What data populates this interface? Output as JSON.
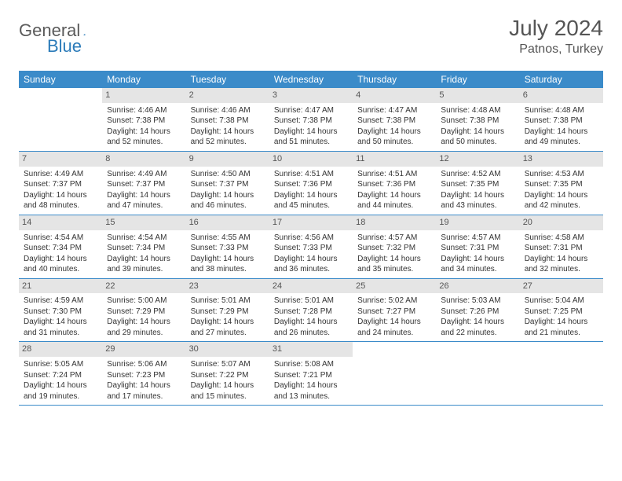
{
  "logo": {
    "part1": "General",
    "part2": "Blue"
  },
  "title": "July 2024",
  "location": "Patnos, Turkey",
  "colors": {
    "header_bg": "#3b8bc9",
    "header_text": "#ffffff",
    "daynum_bg": "#e5e5e5",
    "body_text": "#333333",
    "title_text": "#555555",
    "row_border": "#3b8bc9"
  },
  "dow": [
    "Sunday",
    "Monday",
    "Tuesday",
    "Wednesday",
    "Thursday",
    "Friday",
    "Saturday"
  ],
  "weeks": [
    [
      {
        "n": "",
        "sr": "",
        "ss": "",
        "dl": ""
      },
      {
        "n": "1",
        "sr": "4:46 AM",
        "ss": "7:38 PM",
        "dl": "14 hours and 52 minutes."
      },
      {
        "n": "2",
        "sr": "4:46 AM",
        "ss": "7:38 PM",
        "dl": "14 hours and 52 minutes."
      },
      {
        "n": "3",
        "sr": "4:47 AM",
        "ss": "7:38 PM",
        "dl": "14 hours and 51 minutes."
      },
      {
        "n": "4",
        "sr": "4:47 AM",
        "ss": "7:38 PM",
        "dl": "14 hours and 50 minutes."
      },
      {
        "n": "5",
        "sr": "4:48 AM",
        "ss": "7:38 PM",
        "dl": "14 hours and 50 minutes."
      },
      {
        "n": "6",
        "sr": "4:48 AM",
        "ss": "7:38 PM",
        "dl": "14 hours and 49 minutes."
      }
    ],
    [
      {
        "n": "7",
        "sr": "4:49 AM",
        "ss": "7:37 PM",
        "dl": "14 hours and 48 minutes."
      },
      {
        "n": "8",
        "sr": "4:49 AM",
        "ss": "7:37 PM",
        "dl": "14 hours and 47 minutes."
      },
      {
        "n": "9",
        "sr": "4:50 AM",
        "ss": "7:37 PM",
        "dl": "14 hours and 46 minutes."
      },
      {
        "n": "10",
        "sr": "4:51 AM",
        "ss": "7:36 PM",
        "dl": "14 hours and 45 minutes."
      },
      {
        "n": "11",
        "sr": "4:51 AM",
        "ss": "7:36 PM",
        "dl": "14 hours and 44 minutes."
      },
      {
        "n": "12",
        "sr": "4:52 AM",
        "ss": "7:35 PM",
        "dl": "14 hours and 43 minutes."
      },
      {
        "n": "13",
        "sr": "4:53 AM",
        "ss": "7:35 PM",
        "dl": "14 hours and 42 minutes."
      }
    ],
    [
      {
        "n": "14",
        "sr": "4:54 AM",
        "ss": "7:34 PM",
        "dl": "14 hours and 40 minutes."
      },
      {
        "n": "15",
        "sr": "4:54 AM",
        "ss": "7:34 PM",
        "dl": "14 hours and 39 minutes."
      },
      {
        "n": "16",
        "sr": "4:55 AM",
        "ss": "7:33 PM",
        "dl": "14 hours and 38 minutes."
      },
      {
        "n": "17",
        "sr": "4:56 AM",
        "ss": "7:33 PM",
        "dl": "14 hours and 36 minutes."
      },
      {
        "n": "18",
        "sr": "4:57 AM",
        "ss": "7:32 PM",
        "dl": "14 hours and 35 minutes."
      },
      {
        "n": "19",
        "sr": "4:57 AM",
        "ss": "7:31 PM",
        "dl": "14 hours and 34 minutes."
      },
      {
        "n": "20",
        "sr": "4:58 AM",
        "ss": "7:31 PM",
        "dl": "14 hours and 32 minutes."
      }
    ],
    [
      {
        "n": "21",
        "sr": "4:59 AM",
        "ss": "7:30 PM",
        "dl": "14 hours and 31 minutes."
      },
      {
        "n": "22",
        "sr": "5:00 AM",
        "ss": "7:29 PM",
        "dl": "14 hours and 29 minutes."
      },
      {
        "n": "23",
        "sr": "5:01 AM",
        "ss": "7:29 PM",
        "dl": "14 hours and 27 minutes."
      },
      {
        "n": "24",
        "sr": "5:01 AM",
        "ss": "7:28 PM",
        "dl": "14 hours and 26 minutes."
      },
      {
        "n": "25",
        "sr": "5:02 AM",
        "ss": "7:27 PM",
        "dl": "14 hours and 24 minutes."
      },
      {
        "n": "26",
        "sr": "5:03 AM",
        "ss": "7:26 PM",
        "dl": "14 hours and 22 minutes."
      },
      {
        "n": "27",
        "sr": "5:04 AM",
        "ss": "7:25 PM",
        "dl": "14 hours and 21 minutes."
      }
    ],
    [
      {
        "n": "28",
        "sr": "5:05 AM",
        "ss": "7:24 PM",
        "dl": "14 hours and 19 minutes."
      },
      {
        "n": "29",
        "sr": "5:06 AM",
        "ss": "7:23 PM",
        "dl": "14 hours and 17 minutes."
      },
      {
        "n": "30",
        "sr": "5:07 AM",
        "ss": "7:22 PM",
        "dl": "14 hours and 15 minutes."
      },
      {
        "n": "31",
        "sr": "5:08 AM",
        "ss": "7:21 PM",
        "dl": "14 hours and 13 minutes."
      },
      {
        "n": "",
        "sr": "",
        "ss": "",
        "dl": ""
      },
      {
        "n": "",
        "sr": "",
        "ss": "",
        "dl": ""
      },
      {
        "n": "",
        "sr": "",
        "ss": "",
        "dl": ""
      }
    ]
  ],
  "labels": {
    "sunrise": "Sunrise:",
    "sunset": "Sunset:",
    "daylight": "Daylight:"
  }
}
